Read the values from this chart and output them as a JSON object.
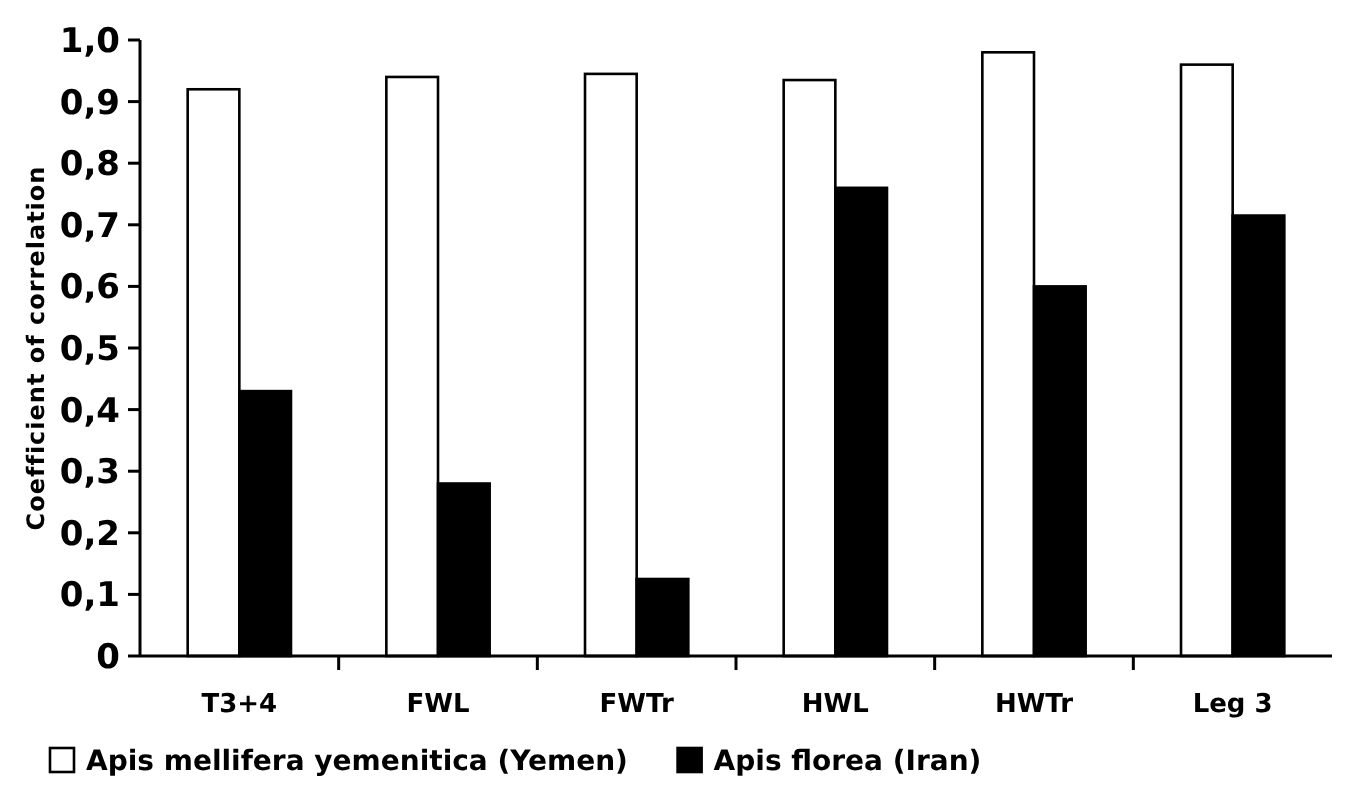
{
  "chart_data": {
    "type": "bar",
    "ylabel": "Coefficient of correlation",
    "categories": [
      "T3+4",
      "FWL",
      "FWTr",
      "HWL",
      "HWTr",
      "Leg 3"
    ],
    "series": [
      {
        "name": "Apis mellifera yemenitica (Yemen)",
        "color": "#ffffff",
        "values": [
          0.92,
          0.94,
          0.945,
          0.935,
          0.98,
          0.96
        ]
      },
      {
        "name": "Apis florea (Iran)",
        "color": "#000000",
        "values": [
          0.43,
          0.28,
          0.125,
          0.76,
          0.6,
          0.715
        ]
      }
    ],
    "ylim": [
      0,
      1
    ],
    "yticks": [
      0,
      {
        "value": 0.1,
        "label": "0,1"
      },
      {
        "value": 0.2,
        "label": "0,2"
      },
      {
        "value": 0.3,
        "label": "0,3"
      },
      {
        "value": 0.4,
        "label": "0,4"
      },
      {
        "value": 0.5,
        "label": "0,5"
      },
      {
        "value": 0.6,
        "label": "0,6"
      },
      {
        "value": 0.7,
        "label": "0,7"
      },
      {
        "value": 0.8,
        "label": "0,8"
      },
      {
        "value": 0.9,
        "label": "0,9"
      },
      {
        "value": 1,
        "label": "1,0"
      }
    ],
    "grid": false,
    "legend": "bottom"
  }
}
